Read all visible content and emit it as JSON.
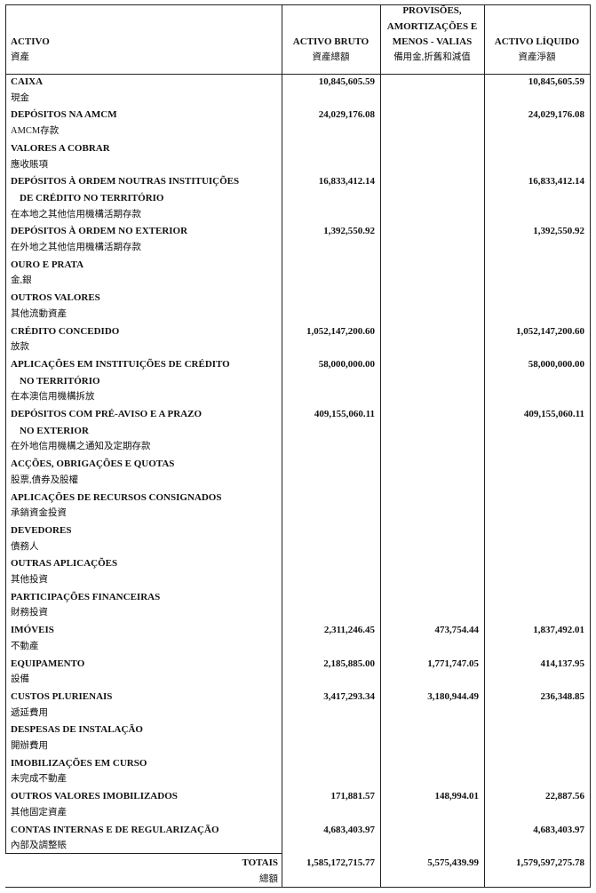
{
  "header": {
    "activo": {
      "pt": "ACTIVO",
      "zh": "資產"
    },
    "bruto": {
      "pt": "ACTIVO BRUTO",
      "zh": "資產總額"
    },
    "provisoes": {
      "pt": [
        "PROVISÕES,",
        "AMORTIZAÇÕES E",
        "MENOS - VALIAS"
      ],
      "zh": "備用金,折舊和減值"
    },
    "liquido": {
      "pt": "ACTIVO LÍQUIDO",
      "zh": "資產淨額"
    }
  },
  "rows": [
    {
      "label": [
        "CAIXA"
      ],
      "zh": "現金",
      "bruto": "10,845,605.59",
      "liquido": "10,845,605.59"
    },
    {
      "label": [
        "DEPÓSITOS NA AMCM"
      ],
      "zh": "AMCM存款",
      "bruto": "24,029,176.08",
      "liquido": "24,029,176.08"
    },
    {
      "label": [
        "VALORES A COBRAR"
      ],
      "zh": "應收賬項"
    },
    {
      "label": [
        "DEPÓSITOS À ORDEM NOUTRAS INSTITUIÇÕES",
        "DE CRÉDITO NO TERRITÓRIO"
      ],
      "zh": "在本地之其他信用機構活期存款",
      "bruto": "16,833,412.14",
      "liquido": "16,833,412.14"
    },
    {
      "label": [
        "DEPÓSITOS À ORDEM NO EXTERIOR"
      ],
      "zh": "在外地之其他信用機構活期存款",
      "bruto": "1,392,550.92",
      "liquido": "1,392,550.92"
    },
    {
      "label": [
        "OURO E PRATA"
      ],
      "zh": "金,銀"
    },
    {
      "label": [
        "OUTROS VALORES"
      ],
      "zh": "其他流動資產"
    },
    {
      "label": [
        "CRÉDITO CONCEDIDO"
      ],
      "zh": "放款",
      "bruto": "1,052,147,200.60",
      "liquido": "1,052,147,200.60"
    },
    {
      "label": [
        "APLICAÇÕES EM INSTITUIÇÕES DE CRÉDITO",
        "NO TERRITÓRIO"
      ],
      "zh": "在本澳信用機構拆放",
      "bruto": "58,000,000.00",
      "liquido": "58,000,000.00"
    },
    {
      "label": [
        "DEPÓSITOS COM PRÉ-AVISO E A PRAZO",
        "NO EXTERIOR"
      ],
      "zh": "在外地信用機構之通知及定期存款",
      "bruto": "409,155,060.11",
      "liquido": "409,155,060.11"
    },
    {
      "label": [
        "ACÇÕES, OBRIGAÇÕES E QUOTAS"
      ],
      "zh": "股票,債券及股權"
    },
    {
      "label": [
        "APLICAÇÕES DE RECURSOS CONSIGNADOS"
      ],
      "zh": "承銷資金投資"
    },
    {
      "label": [
        "DEVEDORES"
      ],
      "zh": "債務人"
    },
    {
      "label": [
        "OUTRAS APLICAÇÕES"
      ],
      "zh": "其他投資"
    },
    {
      "label": [
        "PARTICIPAÇÕES FINANCEIRAS"
      ],
      "zh": "財務投資"
    },
    {
      "label": [
        "IMÓVEIS"
      ],
      "zh": "不動產",
      "bruto": "2,311,246.45",
      "provisoes": "473,754.44",
      "liquido": "1,837,492.01"
    },
    {
      "label": [
        "EQUIPAMENTO"
      ],
      "zh": "設備",
      "bruto": "2,185,885.00",
      "provisoes": "1,771,747.05",
      "liquido": "414,137.95"
    },
    {
      "label": [
        "CUSTOS PLURIENAIS"
      ],
      "zh": "遞延費用",
      "bruto": "3,417,293.34",
      "provisoes": "3,180,944.49",
      "liquido": "236,348.85"
    },
    {
      "label": [
        "DESPESAS DE INSTALAÇÃO"
      ],
      "zh": "開辦費用"
    },
    {
      "label": [
        "IMOBILIZAÇÕES EM CURSO"
      ],
      "zh": "未完成不動產"
    },
    {
      "label": [
        "OUTROS VALORES IMOBILIZADOS"
      ],
      "zh": "其他固定資產",
      "bruto": "171,881.57",
      "provisoes": "148,994.01",
      "liquido": "22,887.56"
    },
    {
      "label": [
        "CONTAS INTERNAS E DE REGULARIZAÇÃO"
      ],
      "zh": "內部及調整賬",
      "bruto": "4,683,403.97",
      "liquido": "4,683,403.97"
    }
  ],
  "totals": {
    "label": "TOTAIS",
    "zh": "總額",
    "bruto": "1,585,172,715.77",
    "provisoes": "5,575,439.99",
    "liquido": "1,579,597,275.78"
  }
}
